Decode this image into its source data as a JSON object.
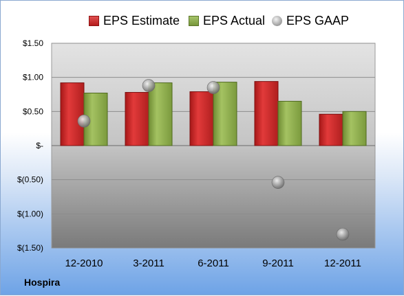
{
  "company": "Hospira",
  "chart_data": {
    "type": "bar",
    "categories": [
      "12-2010",
      "3-2011",
      "6-2011",
      "9-2011",
      "12-2011"
    ],
    "series": [
      {
        "name": "EPS Estimate",
        "kind": "bar",
        "color": "#c0262a",
        "values": [
          0.92,
          0.78,
          0.79,
          0.94,
          0.46
        ]
      },
      {
        "name": "EPS Actual",
        "kind": "bar",
        "color": "#8aa84a",
        "values": [
          0.77,
          0.92,
          0.93,
          0.65,
          0.5
        ]
      },
      {
        "name": "EPS GAAP",
        "kind": "marker",
        "color": "#a0a0a0",
        "values": [
          0.36,
          0.88,
          0.85,
          -0.54,
          -1.3
        ]
      }
    ],
    "y_ticks": [
      1.5,
      1.0,
      0.5,
      0,
      -0.5,
      -1.0,
      -1.5
    ],
    "y_tick_labels": [
      "$1.50",
      "$1.00",
      "$0.50",
      "$-",
      "$(0.50)",
      "$(1.00)",
      "$(1.50)"
    ],
    "ylim": [
      -1.5,
      1.5
    ],
    "grid": true,
    "legend_position": "top"
  }
}
